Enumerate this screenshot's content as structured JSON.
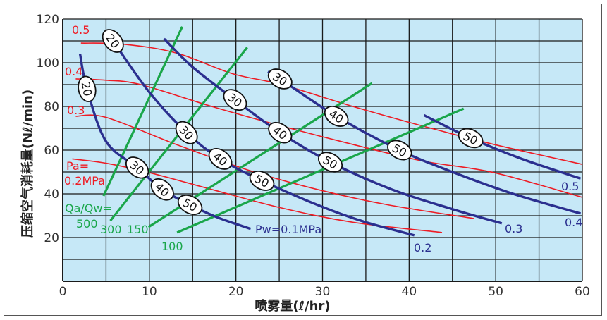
{
  "chart_data": {
    "type": "line",
    "xlabel": "喷雾量(ℓ/hr)",
    "ylabel": "压缩空气消耗量(Nℓ/min)",
    "xlim": [
      0,
      60
    ],
    "ylim": [
      0,
      120
    ],
    "xticks": [
      "0",
      "10",
      "20",
      "30",
      "40",
      "50",
      "60"
    ],
    "yticks": [
      "20",
      "40",
      "60",
      "80",
      "100",
      "120"
    ],
    "grid": true,
    "plot_background": "#c6e8f7",
    "water_pressure_series": {
      "color": "#2b2f8f",
      "series": [
        {
          "name": "0.1",
          "label": "Pw=0.1MPa",
          "points": [
            [
              2.0,
              104
            ],
            [
              2.8,
              88
            ],
            [
              5,
              64
            ],
            [
              8.6,
              52
            ],
            [
              11.5,
              42
            ],
            [
              14.7,
              35
            ],
            [
              18,
              29
            ],
            [
              21.7,
              24
            ]
          ],
          "markers": [
            {
              "x": 2.8,
              "label": "20"
            },
            {
              "x": 8.6,
              "label": "30"
            },
            {
              "x": 11.5,
              "label": "40"
            },
            {
              "x": 14.7,
              "label": "50"
            }
          ]
        },
        {
          "name": "0.2",
          "label": "0.2",
          "points": [
            [
              5,
              114
            ],
            [
              5.8,
              110
            ],
            [
              9.9,
              87
            ],
            [
              14.3,
              68
            ],
            [
              18.2,
              56
            ],
            [
              23,
              46
            ],
            [
              30,
              34
            ],
            [
              35,
              27
            ],
            [
              40.6,
              21
            ]
          ],
          "markers": [
            {
              "x": 5.8,
              "label": "20"
            },
            {
              "x": 14.3,
              "label": "30"
            },
            {
              "x": 18.2,
              "label": "40"
            },
            {
              "x": 23,
              "label": "50"
            }
          ]
        },
        {
          "name": "0.3",
          "label": "0.3",
          "points": [
            [
              11.7,
              111
            ],
            [
              15,
              98
            ],
            [
              19.9,
              83
            ],
            [
              25.1,
              68
            ],
            [
              30.9,
              54.5
            ],
            [
              38,
              42
            ],
            [
              45,
              33
            ],
            [
              50.7,
              26.5
            ]
          ],
          "markers": [
            {
              "x": 19.9,
              "label": "30"
            },
            {
              "x": 25.1,
              "label": "40"
            },
            {
              "x": 30.9,
              "label": "50"
            }
          ]
        },
        {
          "name": "0.4",
          "label": "0.4",
          "points": [
            [
              23.7,
              96
            ],
            [
              25.1,
              92.6
            ],
            [
              31.6,
              75.5
            ],
            [
              38.9,
              60
            ],
            [
              45,
              50
            ],
            [
              52,
              40
            ],
            [
              59.8,
              31
            ]
          ],
          "markers": [
            {
              "x": 25.1,
              "label": "30"
            },
            {
              "x": 31.6,
              "label": "40"
            },
            {
              "x": 38.9,
              "label": "50"
            }
          ]
        },
        {
          "name": "0.5",
          "label": "0.5",
          "points": [
            [
              41.7,
              76
            ],
            [
              47.1,
              65.5
            ],
            [
              53,
              56
            ],
            [
              59.8,
              47
            ]
          ],
          "markers": [
            {
              "x": 47.1,
              "label": "50"
            }
          ]
        }
      ]
    },
    "air_pressure_series": {
      "color": "#ee1c25",
      "series": [
        {
          "name": "0.5",
          "label": "0.5",
          "points": [
            [
              2.1,
              109
            ],
            [
              7,
              108.5
            ],
            [
              13.1,
              104.5
            ],
            [
              19.6,
              95
            ],
            [
              25.3,
              90
            ],
            [
              33.5,
              80
            ],
            [
              41.6,
              71
            ],
            [
              49.8,
              62.6
            ],
            [
              60,
              53.5
            ]
          ]
        },
        {
          "name": "0.4",
          "label": "0.4",
          "points": [
            [
              1.5,
              92.6
            ],
            [
              5,
              92
            ],
            [
              9,
              90
            ],
            [
              17.2,
              80
            ],
            [
              25.3,
              71
            ],
            [
              33.5,
              62.6
            ],
            [
              41.6,
              55
            ],
            [
              49.8,
              49.7
            ],
            [
              60,
              38.4
            ]
          ]
        },
        {
          "name": "0.3",
          "label": "0.3",
          "points": [
            [
              1.5,
              75.5
            ],
            [
              5,
              75
            ],
            [
              13.1,
              62.6
            ],
            [
              21.3,
              51
            ],
            [
              29.4,
              42
            ],
            [
              37.5,
              35
            ],
            [
              47.5,
              28.7
            ]
          ]
        },
        {
          "name": "0.2",
          "label": "Pa=",
          "label2": "0.2MPa",
          "points": [
            [
              1.1,
              56
            ],
            [
              5,
              54
            ],
            [
              10,
              49.7
            ],
            [
              17.2,
              42
            ],
            [
              25.3,
              33.5
            ],
            [
              33.5,
              27
            ],
            [
              43.8,
              22.3
            ]
          ]
        }
      ]
    },
    "air_water_ratio_series": {
      "color": "#1aa64a",
      "title": "Qa/Qw=",
      "series": [
        {
          "name": "500",
          "label": "500",
          "points": [
            [
              4.7,
              39
            ],
            [
              13.8,
              116.5
            ]
          ]
        },
        {
          "name": "300",
          "label": "300",
          "points": [
            [
              5.5,
              27.7
            ],
            [
              21.3,
              107
            ]
          ]
        },
        {
          "name": "150",
          "label": "150",
          "points": [
            [
              9.9,
              24.8
            ],
            [
              35.7,
              90.6
            ]
          ]
        },
        {
          "name": "100",
          "label": "100",
          "points": [
            [
              13.2,
              22.3
            ],
            [
              46.3,
              79
            ]
          ]
        }
      ]
    }
  }
}
